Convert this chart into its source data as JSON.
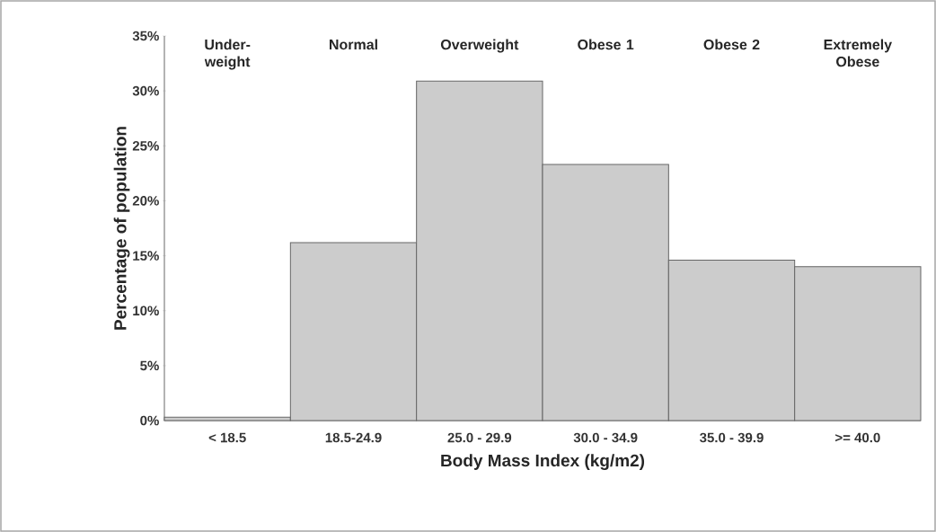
{
  "chart_data": {
    "type": "bar",
    "xlabel": "Body Mass Index (kg/m2)",
    "ylabel": "Percentage of population",
    "categories": [
      "< 18.5",
      "18.5-24.9",
      "25.0 - 29.9",
      "30.0 - 34.9",
      "35.0 - 39.9",
      ">= 40.0"
    ],
    "values": [
      0.3,
      16.2,
      30.9,
      23.3,
      14.6,
      14.0
    ],
    "color": "#cccccc",
    "ylim": [
      0,
      35
    ],
    "yticks": [
      {
        "value": 0,
        "label": "0%"
      },
      {
        "value": 5,
        "label": "5%"
      },
      {
        "value": 10,
        "label": "10%"
      },
      {
        "value": 15,
        "label": "15%"
      },
      {
        "value": 20,
        "label": "20%"
      },
      {
        "value": 25,
        "label": "25%"
      },
      {
        "value": 30,
        "label": "30%"
      },
      {
        "value": 35,
        "label": "35%"
      }
    ],
    "annotations": [
      "Under-weight",
      "Normal",
      "Overweight",
      "Obese 1",
      "Obese 2",
      "Extremely Obese"
    ],
    "grid": false
  }
}
